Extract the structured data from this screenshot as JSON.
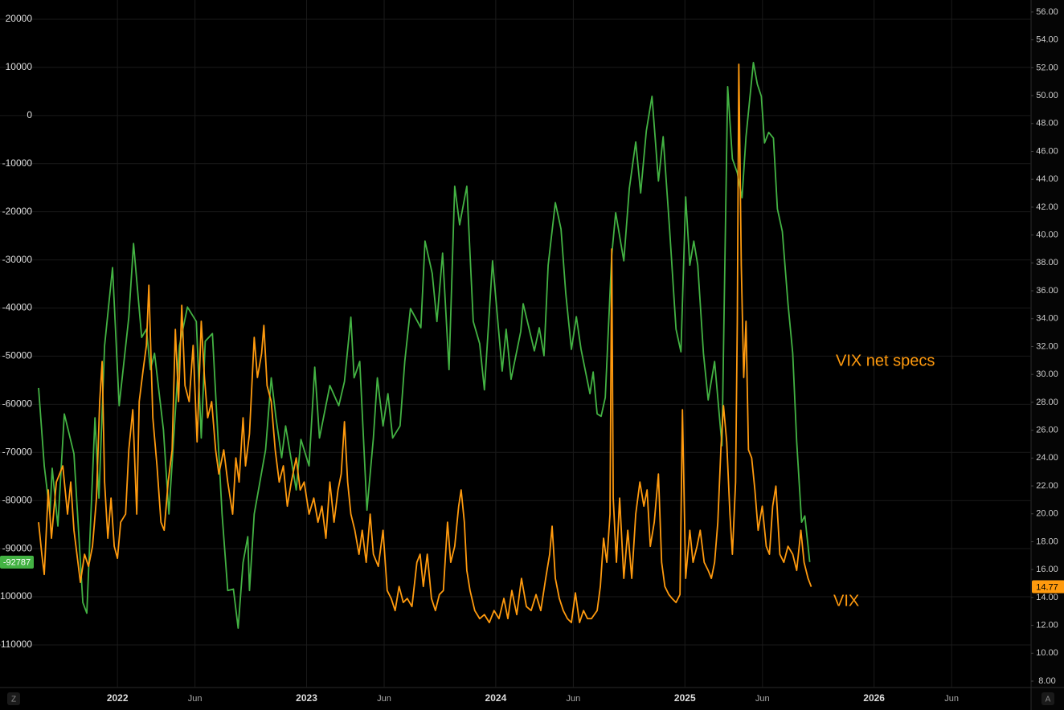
{
  "chart_data": {
    "type": "line",
    "annotations": [
      "VIX net specs",
      "VIX"
    ],
    "axis_buttons": [
      "Z",
      "A"
    ],
    "grid": true,
    "xlim": [
      2021.379,
      2026.83
    ],
    "xticks": [
      2022,
      {
        "value": 2022.41,
        "label": "Jun"
      },
      2023,
      {
        "value": 2023.41,
        "label": "Jun"
      },
      2024,
      {
        "value": 2024.41,
        "label": "Jun"
      },
      2025,
      {
        "value": 2025.41,
        "label": "Jun"
      },
      2026,
      {
        "value": 2026.41,
        "label": "Jun"
      }
    ],
    "ylim": [
      -118850,
      24000
    ],
    "yticks": [
      20000,
      10000,
      0,
      -10000,
      -20000,
      -30000,
      -40000,
      -50000,
      -60000,
      -70000,
      -80000,
      -90000,
      -100000,
      -110000
    ],
    "y2lim": [
      7.54,
      56.86
    ],
    "y2ticks": [
      {
        "value": 56,
        "label": "56.00"
      },
      {
        "value": 54,
        "label": "54.00"
      },
      {
        "value": 52,
        "label": "52.00"
      },
      {
        "value": 50,
        "label": "50.00"
      },
      {
        "value": 48,
        "label": "48.00"
      },
      {
        "value": 46,
        "label": "46.00"
      },
      {
        "value": 44,
        "label": "44.00"
      },
      {
        "value": 42,
        "label": "42.00"
      },
      {
        "value": 40,
        "label": "40.00"
      },
      {
        "value": 38,
        "label": "38.00"
      },
      {
        "value": 36,
        "label": "36.00"
      },
      {
        "value": 34,
        "label": "34.00"
      },
      {
        "value": 32,
        "label": "32.00"
      },
      {
        "value": 30,
        "label": "30.00"
      },
      {
        "value": 28,
        "label": "28.00"
      },
      {
        "value": 26,
        "label": "26.00"
      },
      {
        "value": 24,
        "label": "24.00"
      },
      {
        "value": 22,
        "label": "22.00"
      },
      {
        "value": 20,
        "label": "20.00"
      },
      {
        "value": 18,
        "label": "18.00"
      },
      {
        "value": 16,
        "label": "16.00"
      },
      {
        "value": 14,
        "label": "14.00"
      },
      {
        "value": 12,
        "label": "12.00"
      },
      {
        "value": 10,
        "label": "10.00"
      },
      {
        "value": 8,
        "label": "8.00"
      }
    ],
    "series": [
      {
        "color": "#43b243",
        "axis": "y",
        "x": [
          2021.583,
          2021.613,
          2021.643,
          2021.655,
          2021.685,
          2021.719,
          2021.77,
          2021.817,
          2021.838,
          2021.881,
          2021.902,
          2021.932,
          2021.974,
          2022.009,
          2022.06,
          2022.085,
          2022.128,
          2022.153,
          2022.174,
          2022.196,
          2022.243,
          2022.272,
          2022.328,
          2022.37,
          2022.417,
          2022.443,
          2022.464,
          2022.502,
          2022.553,
          2022.583,
          2022.613,
          2022.638,
          2022.664,
          2022.689,
          2022.698,
          2022.723,
          2022.783,
          2022.813,
          2022.838,
          2022.868,
          2022.889,
          2022.945,
          2022.97,
          2023.013,
          2023.043,
          2023.068,
          2023.123,
          2023.17,
          2023.2,
          2023.234,
          2023.251,
          2023.281,
          2023.319,
          2023.353,
          2023.374,
          2023.404,
          2023.43,
          2023.455,
          2023.494,
          2023.519,
          2023.549,
          2023.604,
          2023.626,
          2023.664,
          2023.689,
          2023.719,
          2023.753,
          2023.783,
          2023.809,
          2023.847,
          2023.881,
          2023.915,
          2023.94,
          2023.983,
          2024.009,
          2024.034,
          2024.055,
          2024.081,
          2024.132,
          2024.145,
          2024.204,
          2024.23,
          2024.255,
          2024.277,
          2024.315,
          2024.345,
          2024.37,
          2024.4,
          2024.426,
          2024.451,
          2024.498,
          2024.515,
          2024.536,
          2024.557,
          2024.579,
          2024.613,
          2024.634,
          2024.677,
          2024.706,
          2024.74,
          2024.766,
          2024.796,
          2024.826,
          2024.86,
          2024.885,
          2024.919,
          2024.953,
          2024.979,
          2025.004,
          2025.026,
          2025.047,
          2025.068,
          2025.098,
          2025.123,
          2025.157,
          2025.196,
          2025.226,
          2025.251,
          2025.277,
          2025.302,
          2025.323,
          2025.362,
          2025.383,
          2025.404,
          2025.421,
          2025.443,
          2025.468,
          2025.489,
          2025.515,
          2025.545,
          2025.57,
          2025.591,
          2025.617,
          2025.634,
          2025.66
        ],
        "values": [
          -56600,
          -72800,
          -82800,
          -73300,
          -85300,
          -62000,
          -70300,
          -101200,
          -103400,
          -62800,
          -79500,
          -47800,
          -31600,
          -60300,
          -41900,
          -26600,
          -46100,
          -44400,
          -52800,
          -49400,
          -65300,
          -82800,
          -47800,
          -39800,
          -42800,
          -67000,
          -46900,
          -45300,
          -82800,
          -98700,
          -98400,
          -106500,
          -92900,
          -87500,
          -98700,
          -82800,
          -69500,
          -54500,
          -62800,
          -71100,
          -64500,
          -77800,
          -67300,
          -72800,
          -52300,
          -67000,
          -56100,
          -60300,
          -55300,
          -41900,
          -54500,
          -51100,
          -82000,
          -67000,
          -54500,
          -64500,
          -57800,
          -67000,
          -64500,
          -51100,
          -40100,
          -44100,
          -26100,
          -32800,
          -42800,
          -28600,
          -52800,
          -14700,
          -22700,
          -14700,
          -42800,
          -47400,
          -57000,
          -30200,
          -41900,
          -53100,
          -44400,
          -54800,
          -44900,
          -39100,
          -48900,
          -44100,
          -49900,
          -31100,
          -18100,
          -23600,
          -36900,
          -48600,
          -41800,
          -48600,
          -57800,
          -53300,
          -62000,
          -62500,
          -58600,
          -29100,
          -20200,
          -30200,
          -15200,
          -5500,
          -16100,
          -3200,
          4000,
          -13600,
          -4400,
          -23600,
          -44400,
          -49100,
          -16900,
          -31100,
          -26100,
          -31100,
          -49400,
          -59100,
          -51100,
          -68600,
          6000,
          -9000,
          -11900,
          -17100,
          -4400,
          11000,
          6500,
          4000,
          -5700,
          -3500,
          -4700,
          -19400,
          -24100,
          -39100,
          -49400,
          -67800,
          -84500,
          -83200,
          -92787
        ]
      },
      {
        "color": "#ff9a0e",
        "axis": "y2",
        "x": [
          2021.583,
          2021.6,
          2021.613,
          2021.634,
          2021.651,
          2021.677,
          2021.711,
          2021.736,
          2021.753,
          2021.77,
          2021.791,
          2021.804,
          2021.826,
          2021.847,
          2021.868,
          2021.889,
          2021.906,
          2021.919,
          2021.932,
          2021.949,
          2021.966,
          2021.983,
          2022.0,
          2022.017,
          2022.043,
          2022.06,
          2022.081,
          2022.102,
          2022.115,
          2022.136,
          2022.153,
          2022.166,
          2022.187,
          2022.209,
          2022.23,
          2022.247,
          2022.268,
          2022.289,
          2022.306,
          2022.323,
          2022.34,
          2022.357,
          2022.379,
          2022.4,
          2022.421,
          2022.443,
          2022.46,
          2022.477,
          2022.498,
          2022.519,
          2022.536,
          2022.562,
          2022.583,
          2022.609,
          2022.626,
          2022.643,
          2022.664,
          2022.677,
          2022.698,
          2022.723,
          2022.74,
          2022.762,
          2022.774,
          2022.791,
          2022.813,
          2022.834,
          2022.855,
          2022.877,
          2022.898,
          2022.919,
          2022.945,
          2022.966,
          2022.987,
          2023.013,
          2023.038,
          2023.06,
          2023.081,
          2023.102,
          2023.123,
          2023.145,
          2023.166,
          2023.183,
          2023.2,
          2023.217,
          2023.234,
          2023.255,
          2023.277,
          2023.294,
          2023.315,
          2023.336,
          2023.353,
          2023.379,
          2023.404,
          2023.426,
          2023.447,
          2023.468,
          2023.489,
          2023.511,
          2023.532,
          2023.557,
          2023.583,
          2023.6,
          2023.617,
          2023.638,
          2023.66,
          2023.681,
          2023.702,
          2023.723,
          2023.745,
          2023.762,
          2023.783,
          2023.804,
          2023.817,
          2023.834,
          2023.847,
          2023.864,
          2023.889,
          2023.915,
          2023.94,
          2023.966,
          2023.991,
          2024.017,
          2024.043,
          2024.064,
          2024.085,
          2024.111,
          2024.136,
          2024.162,
          2024.187,
          2024.213,
          2024.238,
          2024.264,
          2024.285,
          2024.298,
          2024.315,
          2024.336,
          2024.357,
          2024.379,
          2024.4,
          2024.421,
          2024.443,
          2024.464,
          2024.485,
          2024.506,
          2024.536,
          2024.553,
          2024.57,
          2024.587,
          2024.604,
          2024.613,
          2024.621,
          2024.638,
          2024.655,
          2024.677,
          2024.698,
          2024.719,
          2024.74,
          2024.762,
          2024.783,
          2024.8,
          2024.817,
          2024.838,
          2024.86,
          2024.877,
          2024.894,
          2024.915,
          2024.932,
          2024.953,
          2024.974,
          2024.987,
          2025.004,
          2025.026,
          2025.043,
          2025.064,
          2025.081,
          2025.102,
          2025.123,
          2025.14,
          2025.157,
          2025.174,
          2025.191,
          2025.204,
          2025.221,
          2025.238,
          2025.251,
          2025.268,
          2025.277,
          2025.285,
          2025.298,
          2025.311,
          2025.323,
          2025.336,
          2025.353,
          2025.37,
          2025.387,
          2025.409,
          2025.43,
          2025.447,
          2025.464,
          2025.481,
          2025.502,
          2025.523,
          2025.545,
          2025.57,
          2025.591,
          2025.613,
          2025.63,
          2025.651,
          2025.668
        ],
        "values": [
          19.4,
          17.1,
          15.65,
          21.71,
          18.25,
          22.28,
          23.44,
          19.98,
          22.28,
          18.82,
          16.52,
          15.08,
          17.1,
          16.23,
          17.67,
          21.13,
          28.05,
          30.93,
          22.28,
          18.25,
          21.13,
          17.67,
          16.81,
          19.4,
          19.98,
          24.59,
          27.47,
          19.98,
          28.05,
          30.35,
          32.08,
          36.4,
          26.89,
          23.44,
          19.4,
          18.82,
          22.28,
          24.59,
          33.23,
          28.05,
          34.96,
          29.2,
          28.05,
          32.08,
          25.16,
          33.81,
          29.78,
          26.89,
          28.05,
          24.59,
          22.86,
          24.59,
          22.28,
          19.98,
          24.01,
          22.28,
          26.89,
          23.44,
          25.74,
          32.66,
          29.78,
          31.5,
          33.52,
          29.2,
          28.05,
          24.59,
          22.28,
          23.44,
          20.55,
          22.28,
          24.01,
          21.71,
          22.28,
          19.98,
          21.13,
          19.4,
          20.55,
          18.25,
          22.28,
          19.4,
          21.71,
          22.86,
          26.61,
          22.28,
          19.98,
          18.82,
          17.1,
          18.82,
          16.52,
          19.98,
          17.1,
          16.23,
          18.82,
          14.5,
          13.93,
          13.06,
          14.79,
          13.64,
          13.93,
          13.35,
          16.52,
          17.1,
          14.79,
          17.1,
          13.93,
          13.06,
          14.21,
          14.5,
          19.4,
          16.52,
          17.67,
          20.55,
          21.71,
          19.4,
          15.94,
          14.5,
          13.06,
          12.48,
          12.77,
          12.2,
          13.06,
          12.48,
          13.93,
          12.48,
          14.5,
          12.77,
          15.37,
          13.35,
          13.06,
          14.21,
          13.06,
          15.37,
          17.1,
          19.11,
          15.37,
          13.93,
          13.06,
          12.48,
          12.2,
          14.33,
          12.2,
          13.06,
          12.48,
          12.48,
          13.06,
          14.79,
          18.25,
          16.52,
          19.98,
          39.0,
          21.13,
          16.52,
          21.13,
          15.37,
          18.82,
          15.37,
          19.98,
          22.28,
          20.55,
          21.71,
          17.67,
          19.4,
          22.86,
          16.52,
          14.79,
          14.21,
          13.93,
          13.64,
          14.21,
          27.47,
          15.37,
          18.82,
          16.52,
          17.67,
          18.82,
          16.52,
          15.94,
          15.37,
          16.52,
          19.4,
          24.88,
          27.76,
          25.16,
          19.98,
          17.1,
          22.28,
          33.81,
          52.25,
          37.84,
          29.78,
          33.81,
          24.59,
          24.01,
          21.71,
          18.82,
          20.55,
          17.67,
          17.1,
          20.55,
          21.99,
          17.1,
          16.52,
          17.67,
          17.1,
          15.94,
          18.82,
          16.52,
          15.37,
          14.77
        ]
      }
    ]
  }
}
